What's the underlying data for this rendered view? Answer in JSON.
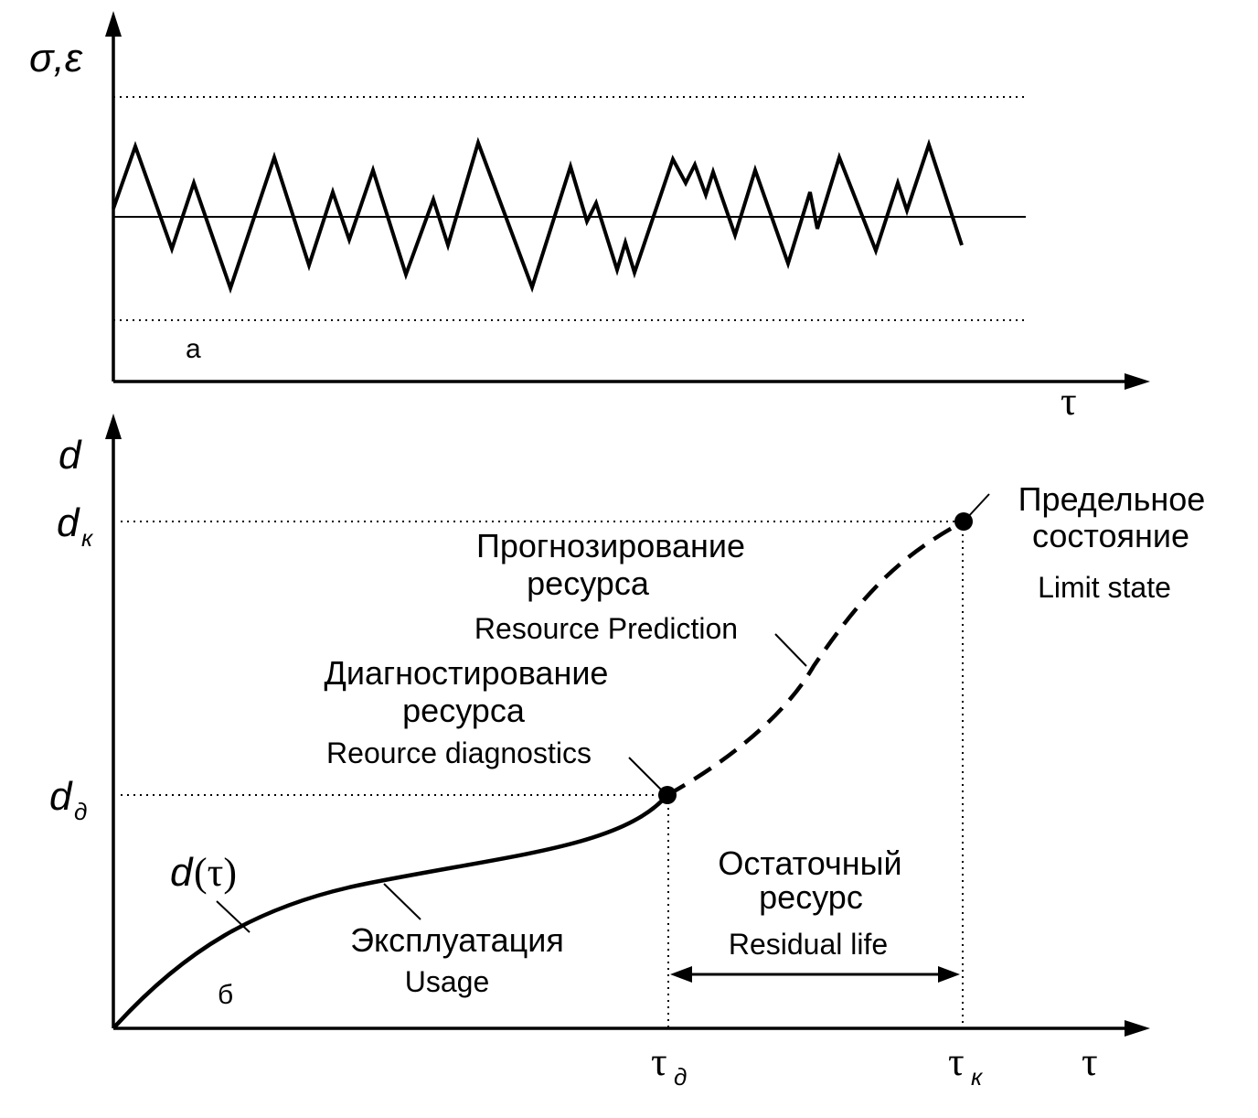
{
  "panel_a": {
    "y_axis_label": "σ,ε",
    "x_axis_label": "τ",
    "panel_letter": "а"
  },
  "panel_b": {
    "y_axis_label": "d",
    "x_axis_label": "τ",
    "panel_letter": "б",
    "y_tick_dk": {
      "base": "d",
      "sub": "к"
    },
    "y_tick_dd": {
      "base": "d",
      "sub": "д"
    },
    "x_tick_td": {
      "base": "τ",
      "sub": "д"
    },
    "x_tick_tk": {
      "base": "τ",
      "sub": "к"
    },
    "curve_label": {
      "base": "d",
      "arg": "(τ)"
    },
    "usage": {
      "ru": "Эксплуатация",
      "en": "Usage"
    },
    "diagnostics": {
      "ru_line1": "Диагностирование",
      "ru_line2": "ресурса",
      "en": "Reource diagnostics"
    },
    "prediction": {
      "ru_line1": "Прогнозирование",
      "ru_line2": "ресурса",
      "en": "Resource Prediction"
    },
    "limit_state": {
      "ru_line1": "Предельное",
      "ru_line2": "состояние",
      "en": "Limit state"
    },
    "residual": {
      "ru_line1": "Остаточный",
      "ru_line2": "ресурс",
      "en": "Residual life"
    }
  }
}
